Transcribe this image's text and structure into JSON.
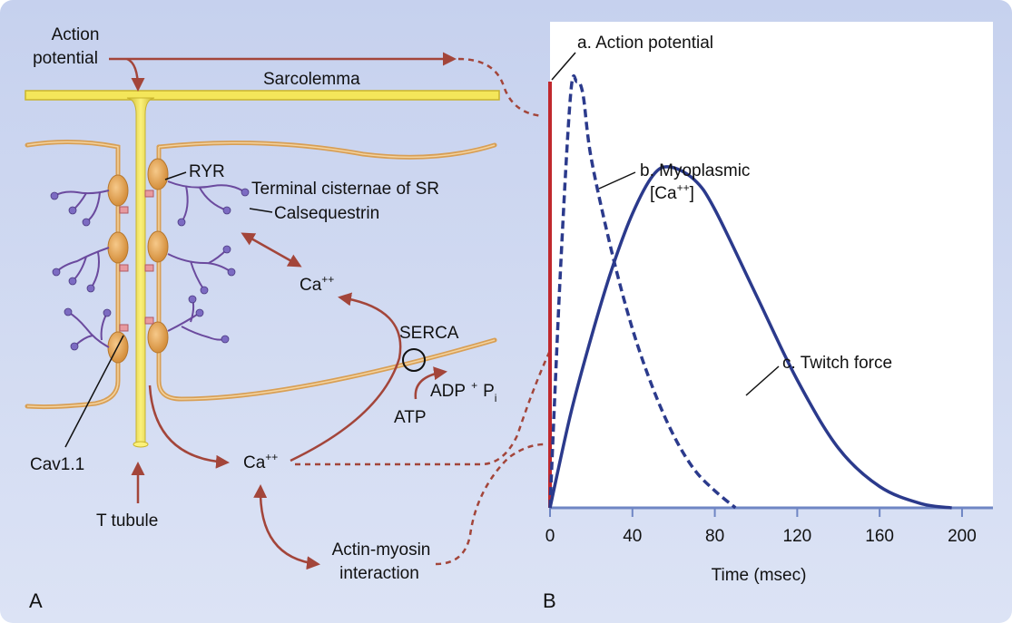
{
  "panel_a": {
    "letter": "A",
    "labels": {
      "action_potential_1": "Action",
      "action_potential_2": "potential",
      "sarcolemma": "Sarcolemma",
      "ryr": "RYR",
      "terminal_cisternae": "Terminal cisternae of SR",
      "calsequestrin": "Calsequestrin",
      "ca_upper": "Ca",
      "ca_upper_sup": "++",
      "serca": "SERCA",
      "adp": "ADP",
      "plus": "+",
      "p": "P",
      "p_sub": "i",
      "atp": "ATP",
      "ca_lower": "Ca",
      "ca_lower_sup": "++",
      "cav": "Cav1.1",
      "t_tubule": "T tubule",
      "actin_myosin_1": "Actin-myosin",
      "actin_myosin_2": "interaction"
    }
  },
  "panel_b": {
    "letter": "B",
    "xlabel": "Time (msec)",
    "xticks": [
      "0",
      "40",
      "80",
      "120",
      "160",
      "200"
    ],
    "curve_labels": {
      "action_potential": "a. Action potential",
      "ca_1": "b. Myoplasmic",
      "ca_2_prefix": "[Ca",
      "ca_2_sup": "++",
      "ca_2_suffix": "]",
      "twitch": "c. Twitch force"
    }
  },
  "colors": {
    "background": "#cdd7ef",
    "sarcolemma": "#f4e65a",
    "membrane": "#d89f55",
    "arrow": "#a3453a",
    "curve": "#2b3a8c",
    "axis": "#6f86c4",
    "ap_line": "#c0282d",
    "calsequestrin": "#6b4a9e"
  },
  "chart_data": {
    "type": "line",
    "xlabel": "Time (msec)",
    "xticks": [
      0,
      40,
      80,
      120,
      160,
      200
    ],
    "xlim": [
      0,
      215
    ],
    "series": [
      {
        "name": "a. Action potential",
        "style": "solid-red",
        "x": [
          0,
          0
        ],
        "y": [
          0,
          1
        ]
      },
      {
        "name": "b. Myoplasmic [Ca++]",
        "style": "dashed",
        "x": [
          0,
          5,
          10,
          13,
          16,
          20,
          30,
          40,
          50,
          60,
          70,
          80,
          90
        ],
        "y": [
          0,
          0.55,
          0.97,
          1.0,
          0.97,
          0.82,
          0.6,
          0.42,
          0.28,
          0.17,
          0.09,
          0.04,
          0
        ]
      },
      {
        "name": "c. Twitch force",
        "style": "solid",
        "x": [
          0,
          10,
          20,
          30,
          40,
          50,
          58,
          70,
          80,
          100,
          120,
          140,
          160,
          180,
          195
        ],
        "y": [
          0,
          0.22,
          0.4,
          0.56,
          0.69,
          0.78,
          0.8,
          0.77,
          0.7,
          0.5,
          0.3,
          0.14,
          0.05,
          0.01,
          0
        ]
      }
    ]
  }
}
